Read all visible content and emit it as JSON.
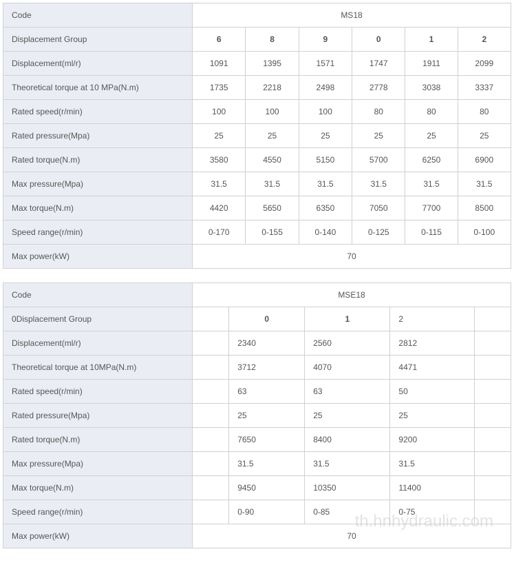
{
  "table1": {
    "code_label": "Code",
    "title": "MS18",
    "group_label": "Displacement Group",
    "groups": [
      "6",
      "8",
      "9",
      "0",
      "1",
      "2"
    ],
    "rows": [
      {
        "label": "Displacement(ml/r)",
        "values": [
          "1091",
          "1395",
          "1571",
          "1747",
          "1911",
          "2099"
        ]
      },
      {
        "label": "Theoretical torque at 10 MPa(N.m)",
        "values": [
          "1735",
          "2218",
          "2498",
          "2778",
          "3038",
          "3337"
        ]
      },
      {
        "label": "Rated speed(r/min)",
        "values": [
          "100",
          "100",
          "100",
          "80",
          "80",
          "80"
        ]
      },
      {
        "label": "Rated pressure(Mpa)",
        "values": [
          "25",
          "25",
          "25",
          "25",
          "25",
          "25"
        ]
      },
      {
        "label": "Rated torque(N.m)",
        "values": [
          "3580",
          "4550",
          "5150",
          "5700",
          "6250",
          "6900"
        ]
      },
      {
        "label": "Max pressure(Mpa)",
        "values": [
          "31.5",
          "31.5",
          "31.5",
          "31.5",
          "31.5",
          "31.5"
        ]
      },
      {
        "label": "Max torque(N.m)",
        "values": [
          "4420",
          "5650",
          "6350",
          "7050",
          "7700",
          "8500"
        ]
      },
      {
        "label": "Speed range(r/min)",
        "values": [
          "0-170",
          "0-155",
          "0-140",
          "0-125",
          "0-115",
          "0-100"
        ]
      }
    ],
    "power_label": "Max power(kW)",
    "power_value": "70"
  },
  "table2": {
    "code_label": "Code",
    "title": "MSE18",
    "group_label": "0Displacement Group",
    "groups": [
      "",
      "0",
      "1",
      "2",
      ""
    ],
    "rows": [
      {
        "label": "Displacement(ml/r)",
        "values": [
          "",
          "2340",
          "2560",
          "2812",
          ""
        ]
      },
      {
        "label": "Theoretical torque at 10MPa(N.m)",
        "values": [
          "",
          "3712",
          "4070",
          "4471",
          ""
        ]
      },
      {
        "label": "Rated speed(r/min)",
        "values": [
          "",
          "63",
          "63",
          "50",
          ""
        ]
      },
      {
        "label": "Rated pressure(Mpa)",
        "values": [
          "",
          "25",
          "25",
          "25",
          ""
        ]
      },
      {
        "label": "Rated torque(N.m)",
        "values": [
          "",
          "7650",
          "8400",
          "9200",
          ""
        ]
      },
      {
        "label": "Max pressure(Mpa)",
        "values": [
          "",
          "31.5",
          "31.5",
          "31.5",
          ""
        ]
      },
      {
        "label": "Max torque(N.m)",
        "values": [
          "",
          "9450",
          "10350",
          "11400",
          ""
        ]
      },
      {
        "label": "Speed range(r/min)",
        "values": [
          "",
          "0-90",
          "0-85",
          "0-75",
          ""
        ]
      }
    ],
    "power_label": "Max power(kW)",
    "power_value": "70"
  },
  "watermark": "th.hnhydraulic.com"
}
